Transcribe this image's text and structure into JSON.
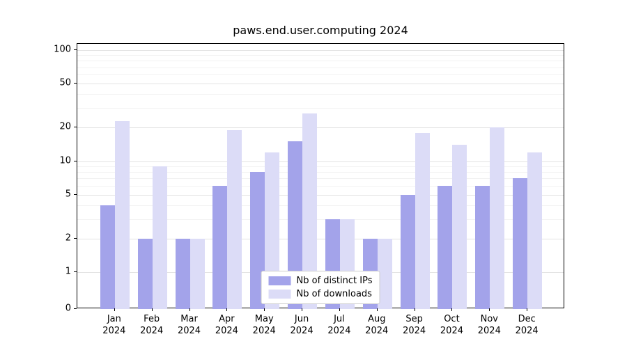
{
  "chart_data": {
    "type": "bar",
    "title": "paws.end.user.computing 2024",
    "categories": [
      "Jan",
      "Feb",
      "Mar",
      "Apr",
      "May",
      "Jun",
      "Jul",
      "Aug",
      "Sep",
      "Oct",
      "Nov",
      "Dec"
    ],
    "year": "2024",
    "series": [
      {
        "name": "Nb of distinct IPs",
        "color": "#a3a3ea",
        "values": [
          4,
          2,
          2,
          6,
          8,
          15,
          3,
          2,
          5,
          6,
          6,
          7
        ]
      },
      {
        "name": "Nb of downloads",
        "color": "#dcdcf7",
        "values": [
          23,
          9,
          2,
          19,
          12,
          27,
          3,
          2,
          18,
          14,
          20,
          12
        ]
      }
    ],
    "yscale": "symlog",
    "yticks": [
      0,
      1,
      2,
      5,
      10,
      20,
      50,
      100
    ],
    "minor_ticks": [
      3,
      4,
      6,
      7,
      8,
      9,
      30,
      40,
      60,
      70,
      80,
      90
    ],
    "ylim": [
      0,
      130
    ],
    "grid": true,
    "legend_position": "lower center",
    "xlabel": "",
    "ylabel": ""
  }
}
